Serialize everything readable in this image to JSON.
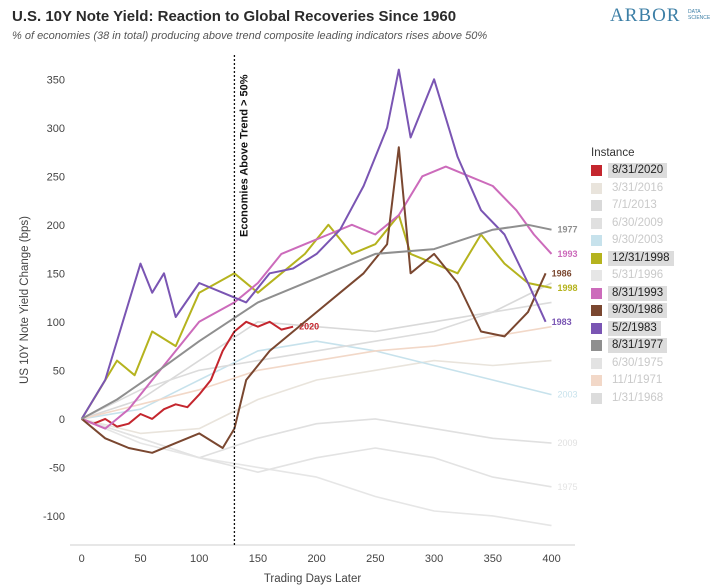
{
  "header": {
    "title": "U.S. 10Y Note Yield: Reaction to Global Recoveries Since 1960",
    "subtitle": "% of economies (38 in total) producing above trend composite leading indicators rises above 50%",
    "logo_main": "ARBOR",
    "logo_sub": "DATA SCIENCE"
  },
  "chart_data": {
    "type": "line",
    "ylabel": "US 10Y Note Yield Change (bps)",
    "xlabel": "Trading Days Later",
    "xlim": [
      -10,
      420
    ],
    "ylim": [
      -130,
      375
    ],
    "xticks": [
      0,
      50,
      100,
      150,
      200,
      250,
      300,
      350,
      400
    ],
    "yticks": [
      -100,
      -50,
      0,
      50,
      100,
      150,
      200,
      250,
      300,
      350
    ],
    "grid": false,
    "legend_title": "Instance",
    "legend_position": "right",
    "annotation": {
      "x": 130,
      "text": "Economies Above Trend > 50%"
    },
    "series": [
      {
        "name": "8/31/2020",
        "color": "#c4262e",
        "highlight": true,
        "end_label": "2020",
        "points": [
          [
            0,
            0
          ],
          [
            10,
            -5
          ],
          [
            20,
            0
          ],
          [
            30,
            -8
          ],
          [
            40,
            -5
          ],
          [
            50,
            5
          ],
          [
            60,
            0
          ],
          [
            70,
            10
          ],
          [
            80,
            15
          ],
          [
            90,
            12
          ],
          [
            100,
            25
          ],
          [
            110,
            40
          ],
          [
            120,
            70
          ],
          [
            130,
            90
          ],
          [
            140,
            100
          ],
          [
            150,
            95
          ],
          [
            160,
            100
          ],
          [
            170,
            92
          ],
          [
            180,
            95
          ]
        ]
      },
      {
        "name": "3/31/2016",
        "color": "#e9e4dc",
        "highlight": false,
        "end_label": "",
        "points": [
          [
            0,
            0
          ],
          [
            50,
            -15
          ],
          [
            100,
            -10
          ],
          [
            150,
            20
          ],
          [
            200,
            40
          ],
          [
            250,
            50
          ],
          [
            300,
            60
          ],
          [
            350,
            55
          ],
          [
            400,
            60
          ]
        ]
      },
      {
        "name": "7/1/2013",
        "color": "#d9d9d9",
        "highlight": false,
        "end_label": "",
        "points": [
          [
            0,
            0
          ],
          [
            50,
            20
          ],
          [
            100,
            60
          ],
          [
            150,
            100
          ],
          [
            200,
            95
          ],
          [
            250,
            90
          ],
          [
            300,
            100
          ],
          [
            350,
            110
          ],
          [
            400,
            140
          ]
        ]
      },
      {
        "name": "6/30/2009",
        "color": "#e0e0e0",
        "highlight": false,
        "end_label": "2009",
        "points": [
          [
            0,
            0
          ],
          [
            50,
            -20
          ],
          [
            100,
            -40
          ],
          [
            150,
            -20
          ],
          [
            200,
            -5
          ],
          [
            250,
            0
          ],
          [
            300,
            -10
          ],
          [
            350,
            -20
          ],
          [
            400,
            -25
          ]
        ]
      },
      {
        "name": "9/30/2003",
        "color": "#c7e2ec",
        "highlight": false,
        "end_label": "2003",
        "points": [
          [
            0,
            0
          ],
          [
            50,
            10
          ],
          [
            100,
            40
          ],
          [
            150,
            70
          ],
          [
            200,
            80
          ],
          [
            250,
            70
          ],
          [
            300,
            55
          ],
          [
            350,
            40
          ],
          [
            400,
            25
          ]
        ]
      },
      {
        "name": "12/31/1998",
        "color": "#b5b31e",
        "highlight": true,
        "end_label": "1998",
        "points": [
          [
            0,
            0
          ],
          [
            15,
            30
          ],
          [
            30,
            60
          ],
          [
            45,
            45
          ],
          [
            60,
            90
          ],
          [
            80,
            75
          ],
          [
            100,
            130
          ],
          [
            115,
            140
          ],
          [
            130,
            150
          ],
          [
            150,
            130
          ],
          [
            170,
            150
          ],
          [
            190,
            170
          ],
          [
            210,
            200
          ],
          [
            230,
            170
          ],
          [
            250,
            180
          ],
          [
            270,
            210
          ],
          [
            280,
            170
          ],
          [
            300,
            160
          ],
          [
            320,
            150
          ],
          [
            340,
            190
          ],
          [
            360,
            160
          ],
          [
            380,
            140
          ],
          [
            400,
            135
          ]
        ]
      },
      {
        "name": "5/31/1996",
        "color": "#e6e6e6",
        "highlight": false,
        "end_label": "",
        "points": [
          [
            0,
            0
          ],
          [
            50,
            -25
          ],
          [
            100,
            -40
          ],
          [
            150,
            -50
          ],
          [
            200,
            -60
          ],
          [
            250,
            -80
          ],
          [
            300,
            -95
          ],
          [
            350,
            -100
          ],
          [
            400,
            -110
          ]
        ]
      },
      {
        "name": "8/31/1993",
        "color": "#cc6bbb",
        "highlight": true,
        "end_label": "1993",
        "points": [
          [
            0,
            0
          ],
          [
            20,
            -10
          ],
          [
            40,
            10
          ],
          [
            60,
            40
          ],
          [
            80,
            70
          ],
          [
            100,
            100
          ],
          [
            130,
            120
          ],
          [
            150,
            140
          ],
          [
            170,
            170
          ],
          [
            190,
            180
          ],
          [
            210,
            190
          ],
          [
            230,
            200
          ],
          [
            250,
            190
          ],
          [
            270,
            210
          ],
          [
            290,
            250
          ],
          [
            310,
            260
          ],
          [
            330,
            250
          ],
          [
            350,
            240
          ],
          [
            370,
            215
          ],
          [
            385,
            190
          ],
          [
            400,
            170
          ]
        ]
      },
      {
        "name": "9/30/1986",
        "color": "#7a4730",
        "highlight": true,
        "end_label": "1986",
        "points": [
          [
            0,
            0
          ],
          [
            20,
            -20
          ],
          [
            40,
            -30
          ],
          [
            60,
            -35
          ],
          [
            80,
            -25
          ],
          [
            100,
            -15
          ],
          [
            120,
            -30
          ],
          [
            130,
            -10
          ],
          [
            140,
            40
          ],
          [
            160,
            70
          ],
          [
            180,
            90
          ],
          [
            200,
            110
          ],
          [
            220,
            130
          ],
          [
            240,
            150
          ],
          [
            260,
            180
          ],
          [
            270,
            280
          ],
          [
            280,
            150
          ],
          [
            300,
            170
          ],
          [
            320,
            140
          ],
          [
            340,
            90
          ],
          [
            360,
            85
          ],
          [
            380,
            110
          ],
          [
            395,
            150
          ]
        ]
      },
      {
        "name": "5/2/1983",
        "color": "#7a55b3",
        "highlight": true,
        "end_label": "1983",
        "points": [
          [
            0,
            0
          ],
          [
            20,
            40
          ],
          [
            35,
            100
          ],
          [
            50,
            160
          ],
          [
            60,
            130
          ],
          [
            70,
            150
          ],
          [
            80,
            105
          ],
          [
            100,
            140
          ],
          [
            120,
            130
          ],
          [
            140,
            120
          ],
          [
            160,
            150
          ],
          [
            180,
            155
          ],
          [
            200,
            170
          ],
          [
            220,
            195
          ],
          [
            240,
            240
          ],
          [
            260,
            300
          ],
          [
            270,
            360
          ],
          [
            280,
            290
          ],
          [
            300,
            350
          ],
          [
            320,
            270
          ],
          [
            340,
            215
          ],
          [
            360,
            190
          ],
          [
            380,
            140
          ],
          [
            395,
            100
          ]
        ]
      },
      {
        "name": "8/31/1977",
        "color": "#8f8f8f",
        "highlight": true,
        "end_label": "1977",
        "points": [
          [
            0,
            0
          ],
          [
            30,
            20
          ],
          [
            60,
            45
          ],
          [
            100,
            80
          ],
          [
            150,
            120
          ],
          [
            200,
            145
          ],
          [
            250,
            170
          ],
          [
            300,
            175
          ],
          [
            350,
            195
          ],
          [
            380,
            200
          ],
          [
            400,
            195
          ]
        ]
      },
      {
        "name": "6/30/1975",
        "color": "#e3e3e3",
        "highlight": false,
        "end_label": "1975",
        "points": [
          [
            0,
            0
          ],
          [
            50,
            -20
          ],
          [
            100,
            -40
          ],
          [
            150,
            -55
          ],
          [
            200,
            -40
          ],
          [
            250,
            -30
          ],
          [
            300,
            -40
          ],
          [
            350,
            -60
          ],
          [
            400,
            -70
          ]
        ]
      },
      {
        "name": "11/1/1971",
        "color": "#f2d8c8",
        "highlight": false,
        "end_label": "",
        "points": [
          [
            0,
            0
          ],
          [
            50,
            15
          ],
          [
            100,
            30
          ],
          [
            150,
            50
          ],
          [
            200,
            60
          ],
          [
            250,
            70
          ],
          [
            300,
            75
          ],
          [
            350,
            85
          ],
          [
            400,
            95
          ]
        ]
      },
      {
        "name": "1/31/1968",
        "color": "#dcdcdc",
        "highlight": false,
        "end_label": "",
        "points": [
          [
            0,
            0
          ],
          [
            50,
            30
          ],
          [
            100,
            50
          ],
          [
            150,
            60
          ],
          [
            200,
            70
          ],
          [
            250,
            80
          ],
          [
            300,
            90
          ],
          [
            350,
            110
          ],
          [
            400,
            120
          ]
        ]
      }
    ]
  }
}
